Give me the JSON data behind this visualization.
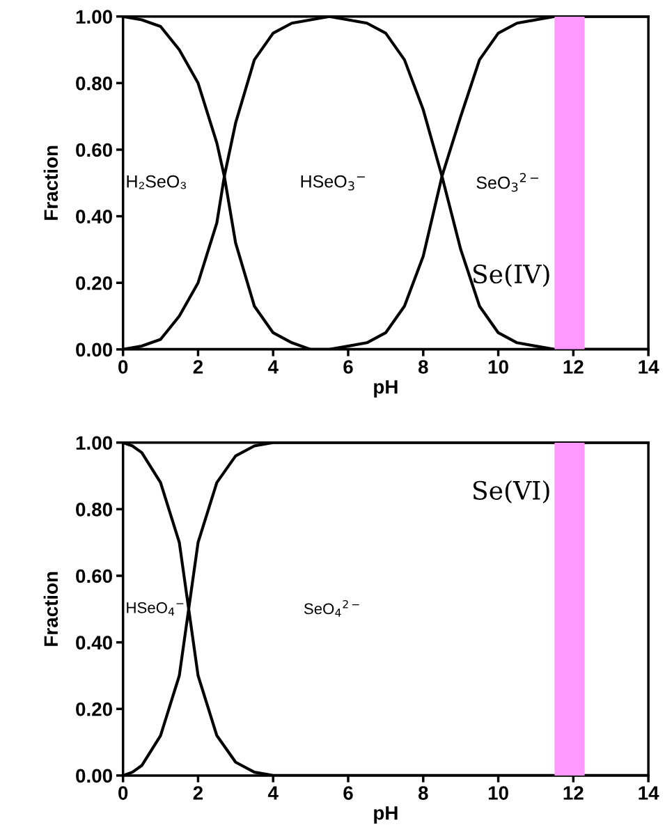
{
  "chart_data": [
    {
      "type": "line",
      "title": "Se(IV)",
      "xlabel": "pH",
      "ylabel": "Fraction",
      "xlim": [
        0,
        14
      ],
      "xticks": [
        0,
        2,
        4,
        6,
        8,
        10,
        12,
        14
      ],
      "ylim": [
        0,
        1
      ],
      "yticks": [
        {
          "value": 0,
          "label": "0.00"
        },
        {
          "value": 0.2,
          "label": "0.20"
        },
        {
          "value": 0.4,
          "label": "0.40"
        },
        {
          "value": 0.6,
          "label": "0.60"
        },
        {
          "value": 0.8,
          "label": "0.80"
        },
        {
          "value": 1,
          "label": "1.00"
        }
      ],
      "grid": false,
      "legend": false,
      "marker": "none",
      "line_style": "solid",
      "series": [
        {
          "color": "#000000",
          "x": [
            0,
            0.5,
            1,
            1.5,
            2,
            2.5,
            2.7,
            3,
            3.5,
            4,
            4.5,
            5,
            6,
            8,
            10,
            12,
            14
          ],
          "values": [
            1.0,
            0.99,
            0.97,
            0.9,
            0.8,
            0.62,
            0.52,
            0.32,
            0.13,
            0.05,
            0.02,
            0.0,
            0,
            0,
            0,
            0,
            0
          ]
        },
        {
          "color": "#000000",
          "x": [
            0,
            0.5,
            1,
            1.5,
            2,
            2.5,
            2.7,
            3,
            3.5,
            4,
            4.5,
            5,
            5.5,
            6,
            6.5,
            7,
            7.5,
            8,
            8.5,
            9,
            9.5,
            10,
            10.5,
            11,
            11.5,
            12,
            14
          ],
          "values": [
            0.0,
            0.01,
            0.03,
            0.1,
            0.2,
            0.38,
            0.52,
            0.68,
            0.87,
            0.95,
            0.98,
            0.99,
            1.0,
            0.99,
            0.98,
            0.95,
            0.87,
            0.72,
            0.52,
            0.3,
            0.13,
            0.05,
            0.02,
            0.01,
            0,
            0,
            0
          ]
        },
        {
          "color": "#000000",
          "x": [
            0,
            2,
            4,
            5,
            5.5,
            6,
            6.5,
            7,
            7.5,
            8,
            8.5,
            9,
            9.5,
            10,
            10.5,
            11,
            11.5,
            12,
            14
          ],
          "values": [
            0,
            0,
            0,
            0.0,
            0.0,
            0.01,
            0.02,
            0.05,
            0.13,
            0.28,
            0.52,
            0.7,
            0.87,
            0.95,
            0.98,
            0.99,
            1.0,
            1.0,
            1.0
          ]
        }
      ],
      "bands": [
        {
          "axis": "x",
          "from": 11.5,
          "to": 12.3,
          "color": "#ff99ff"
        }
      ],
      "annotations": [
        "H₂SeO₃",
        "HSeO$_{3}$$^{−}$",
        "SeO$_{3}$$^{2−}$"
      ]
    },
    {
      "type": "line",
      "title": "Se(VI)",
      "xlabel": "pH",
      "ylabel": "Fraction",
      "xlim": [
        0,
        14
      ],
      "xticks": [
        0,
        2,
        4,
        6,
        8,
        10,
        12,
        14
      ],
      "ylim": [
        0,
        1
      ],
      "yticks": [
        {
          "value": 0,
          "label": "0.00"
        },
        {
          "value": 0.2,
          "label": "0.20"
        },
        {
          "value": 0.4,
          "label": "0.40"
        },
        {
          "value": 0.6,
          "label": "0.60"
        },
        {
          "value": 0.8,
          "label": "0.80"
        },
        {
          "value": 1,
          "label": "1.00"
        }
      ],
      "grid": false,
      "legend": false,
      "marker": "none",
      "line_style": "solid",
      "series": [
        {
          "color": "#000000",
          "x": [
            0,
            0.25,
            0.5,
            1,
            1.5,
            1.75,
            2,
            2.5,
            3,
            3.5,
            4,
            6,
            8,
            10,
            12,
            14
          ],
          "values": [
            1.0,
            0.99,
            0.97,
            0.88,
            0.7,
            0.5,
            0.3,
            0.12,
            0.04,
            0.01,
            0.0,
            0,
            0,
            0,
            0,
            0
          ]
        },
        {
          "color": "#000000",
          "x": [
            0,
            0.25,
            0.5,
            1,
            1.5,
            1.75,
            2,
            2.5,
            3,
            3.5,
            4,
            6,
            8,
            10,
            12,
            14
          ],
          "values": [
            0.0,
            0.01,
            0.03,
            0.12,
            0.3,
            0.5,
            0.7,
            0.88,
            0.96,
            0.99,
            1.0,
            1,
            1,
            1,
            1,
            1
          ]
        }
      ],
      "bands": [
        {
          "axis": "x",
          "from": 11.5,
          "to": 12.3,
          "color": "#ff99ff"
        }
      ],
      "annotations": [
        "HSeO$_{4}$$^{−}$",
        "SeO$_{4}$$^{2−}$"
      ]
    }
  ]
}
